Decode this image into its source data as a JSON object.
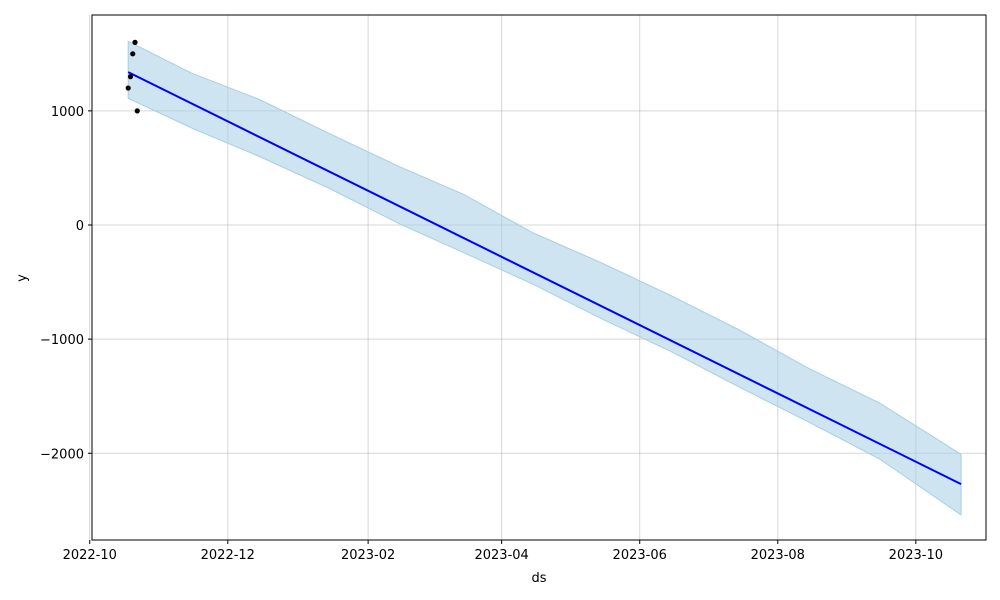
{
  "chart_data": {
    "type": "line",
    "xlabel": "ds",
    "ylabel": "y",
    "x_ticks": [
      "2022-10",
      "2022-12",
      "2023-02",
      "2023-04",
      "2023-06",
      "2023-08",
      "2023-10"
    ],
    "y_ticks": [
      -2000,
      -1000,
      0,
      1000
    ],
    "xlim": [
      "2022-10-02",
      "2023-11-01"
    ],
    "ylim": [
      -2760,
      1840
    ],
    "grid": true,
    "forecast": {
      "color": "#0000ff",
      "x": [
        "2022-10-18",
        "2023-10-21"
      ],
      "yhat": [
        1340,
        -2270
      ]
    },
    "uncertainty": {
      "color": "#a6cee3",
      "x": [
        "2022-10-18",
        "2022-11-15",
        "2022-12-15",
        "2023-01-15",
        "2023-02-15",
        "2023-03-15",
        "2023-04-15",
        "2023-05-15",
        "2023-06-15",
        "2023-07-15",
        "2023-08-15",
        "2023-09-15",
        "2023-10-21"
      ],
      "upper": [
        1610,
        1330,
        1100,
        800,
        510,
        270,
        -70,
        -330,
        -620,
        -920,
        -1260,
        -1560,
        -2010
      ],
      "lower": [
        1110,
        850,
        600,
        320,
        10,
        -240,
        -520,
        -820,
        -1110,
        -1420,
        -1730,
        -2050,
        -2540
      ]
    },
    "observed": {
      "color": "#000000",
      "points": [
        {
          "x": "2022-10-18",
          "y": 1200
        },
        {
          "x": "2022-10-19",
          "y": 1300
        },
        {
          "x": "2022-10-20",
          "y": 1500
        },
        {
          "x": "2022-10-21",
          "y": 1600
        },
        {
          "x": "2022-10-22",
          "y": 1000
        }
      ]
    }
  }
}
